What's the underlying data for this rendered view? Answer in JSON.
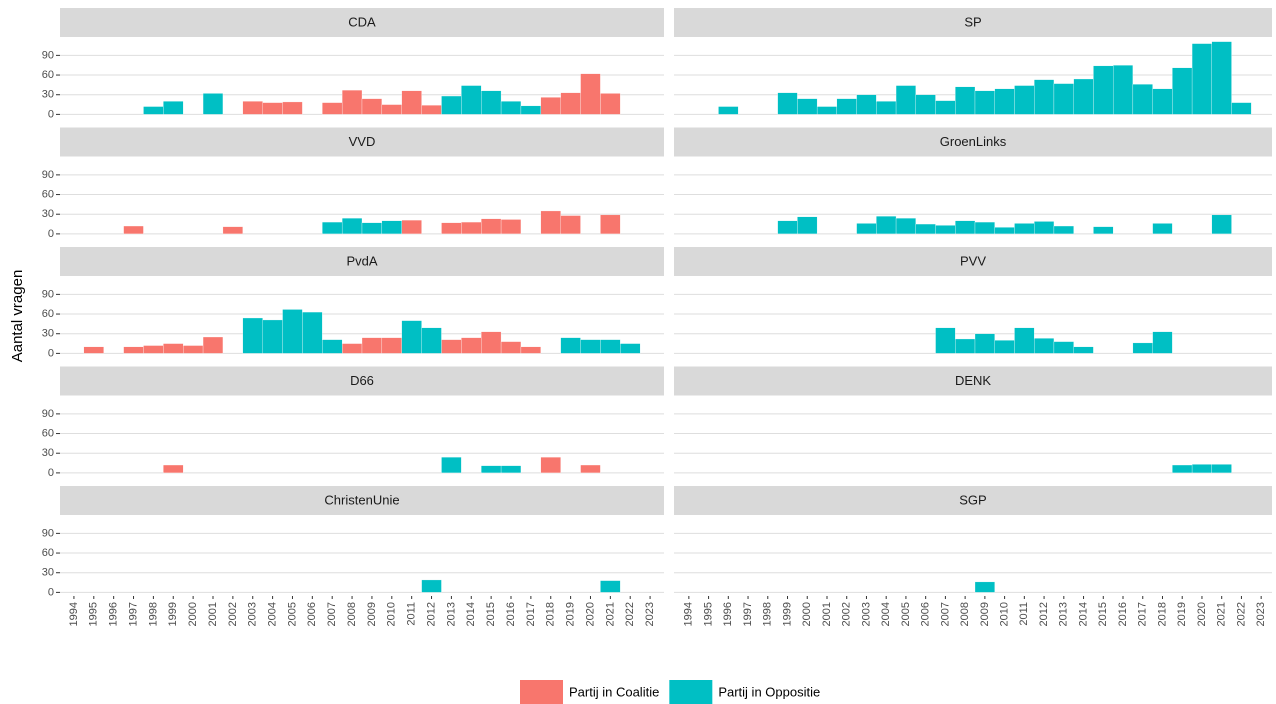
{
  "chart_data": {
    "type": "bar",
    "ylabel": "Aantal vragen",
    "categories": [
      "1994",
      "1995",
      "1996",
      "1997",
      "1998",
      "1999",
      "2000",
      "2001",
      "2002",
      "2003",
      "2004",
      "2005",
      "2006",
      "2007",
      "2008",
      "2009",
      "2010",
      "2011",
      "2012",
      "2013",
      "2014",
      "2015",
      "2016",
      "2017",
      "2018",
      "2019",
      "2020",
      "2021",
      "2022",
      "2023"
    ],
    "ylim": [
      -5.5,
      116.5
    ],
    "yticks": [
      0,
      30,
      60,
      90
    ],
    "grid": true,
    "legend": "bottom",
    "series": [
      {
        "name": "Partij in Coalitie",
        "color": "#f8766d"
      },
      {
        "name": "Partij in Oppositie",
        "color": "#00bfc4"
      }
    ],
    "facets": [
      {
        "title": "CDA",
        "series": [
          [
            null,
            null,
            null,
            null,
            null,
            null,
            null,
            null,
            null,
            20,
            18,
            19,
            null,
            18,
            37,
            24,
            15,
            36,
            14,
            null,
            null,
            null,
            null,
            null,
            26,
            33,
            62,
            32,
            null,
            null
          ],
          [
            null,
            null,
            null,
            null,
            12,
            20,
            null,
            32,
            null,
            null,
            null,
            null,
            null,
            null,
            null,
            null,
            null,
            null,
            null,
            28,
            44,
            36,
            20,
            13,
            null,
            null,
            null,
            null,
            null,
            null
          ]
        ]
      },
      {
        "title": "SP",
        "series": [
          [
            null,
            null,
            null,
            null,
            null,
            null,
            null,
            null,
            null,
            null,
            null,
            null,
            null,
            null,
            null,
            null,
            null,
            null,
            null,
            null,
            null,
            null,
            null,
            null,
            null,
            null,
            null,
            null,
            null,
            null
          ],
          [
            null,
            null,
            12,
            null,
            null,
            33,
            24,
            12,
            24,
            30,
            20,
            44,
            30,
            21,
            42,
            36,
            39,
            44,
            53,
            47,
            54,
            74,
            75,
            46,
            39,
            71,
            108,
            111,
            18,
            null
          ]
        ]
      },
      {
        "title": "VVD",
        "series": [
          [
            null,
            null,
            null,
            12,
            null,
            null,
            null,
            null,
            11,
            null,
            null,
            null,
            null,
            null,
            null,
            null,
            null,
            21,
            null,
            17,
            18,
            23,
            22,
            null,
            35,
            28,
            null,
            29,
            null,
            null
          ],
          [
            null,
            null,
            null,
            null,
            null,
            null,
            null,
            null,
            null,
            null,
            null,
            null,
            null,
            18,
            24,
            17,
            20,
            null,
            null,
            null,
            null,
            null,
            null,
            null,
            null,
            null,
            null,
            null,
            null,
            null
          ]
        ]
      },
      {
        "title": "GroenLinks",
        "series": [
          [
            null,
            null,
            null,
            null,
            null,
            null,
            null,
            null,
            null,
            null,
            null,
            null,
            null,
            null,
            null,
            null,
            null,
            null,
            null,
            null,
            null,
            null,
            null,
            null,
            null,
            null,
            null,
            null,
            null,
            null
          ],
          [
            null,
            null,
            null,
            null,
            null,
            20,
            26,
            null,
            null,
            16,
            27,
            24,
            15,
            13,
            20,
            18,
            10,
            16,
            19,
            12,
            null,
            11,
            null,
            null,
            16,
            null,
            null,
            29,
            null,
            null
          ]
        ]
      },
      {
        "title": "PvdA",
        "series": [
          [
            null,
            10,
            null,
            10,
            12,
            15,
            12,
            25,
            null,
            null,
            null,
            null,
            null,
            null,
            15,
            24,
            24,
            null,
            null,
            21,
            24,
            33,
            18,
            10,
            null,
            null,
            null,
            null,
            null,
            null
          ],
          [
            null,
            null,
            null,
            null,
            null,
            null,
            null,
            null,
            null,
            54,
            51,
            67,
            63,
            21,
            null,
            null,
            null,
            50,
            39,
            null,
            null,
            null,
            null,
            null,
            null,
            24,
            21,
            21,
            15,
            null
          ]
        ]
      },
      {
        "title": "PVV",
        "series": [
          [
            null,
            null,
            null,
            null,
            null,
            null,
            null,
            null,
            null,
            null,
            null,
            null,
            null,
            null,
            null,
            null,
            null,
            null,
            null,
            null,
            null,
            null,
            null,
            null,
            null,
            null,
            null,
            null,
            null,
            null
          ],
          [
            null,
            null,
            null,
            null,
            null,
            null,
            null,
            null,
            null,
            null,
            null,
            null,
            null,
            39,
            22,
            30,
            20,
            39,
            23,
            18,
            10,
            null,
            null,
            16,
            33,
            null,
            null,
            null,
            null,
            null
          ]
        ]
      },
      {
        "title": "D66",
        "series": [
          [
            null,
            null,
            null,
            null,
            null,
            12,
            null,
            null,
            null,
            null,
            null,
            null,
            null,
            null,
            null,
            null,
            null,
            null,
            null,
            null,
            null,
            null,
            null,
            null,
            24,
            null,
            12,
            null,
            null,
            null
          ],
          [
            null,
            null,
            null,
            null,
            null,
            null,
            null,
            null,
            null,
            null,
            null,
            null,
            null,
            null,
            null,
            null,
            null,
            null,
            null,
            24,
            null,
            11,
            11,
            null,
            null,
            null,
            null,
            null,
            null,
            null
          ]
        ]
      },
      {
        "title": "DENK",
        "series": [
          [
            null,
            null,
            null,
            null,
            null,
            null,
            null,
            null,
            null,
            null,
            null,
            null,
            null,
            null,
            null,
            null,
            null,
            null,
            null,
            null,
            null,
            null,
            null,
            null,
            null,
            null,
            null,
            null,
            null,
            null
          ],
          [
            null,
            null,
            null,
            null,
            null,
            null,
            null,
            null,
            null,
            null,
            null,
            null,
            null,
            null,
            null,
            null,
            null,
            null,
            null,
            null,
            null,
            null,
            null,
            null,
            null,
            12,
            13,
            13,
            null,
            null
          ]
        ]
      },
      {
        "title": "ChristenUnie",
        "series": [
          [
            null,
            null,
            null,
            null,
            null,
            null,
            null,
            null,
            null,
            null,
            null,
            null,
            null,
            null,
            null,
            null,
            null,
            null,
            null,
            null,
            null,
            null,
            null,
            null,
            null,
            null,
            null,
            null,
            null,
            null
          ],
          [
            null,
            null,
            null,
            null,
            null,
            null,
            null,
            null,
            null,
            null,
            null,
            null,
            null,
            null,
            null,
            null,
            null,
            null,
            19,
            null,
            null,
            null,
            null,
            null,
            null,
            null,
            null,
            18,
            null,
            null
          ]
        ]
      },
      {
        "title": "SGP",
        "series": [
          [
            null,
            null,
            null,
            null,
            null,
            null,
            null,
            null,
            null,
            null,
            null,
            null,
            null,
            null,
            null,
            null,
            null,
            null,
            null,
            null,
            null,
            null,
            null,
            null,
            null,
            null,
            null,
            null,
            null,
            null
          ],
          [
            null,
            null,
            null,
            null,
            null,
            null,
            null,
            null,
            null,
            null,
            null,
            null,
            null,
            null,
            null,
            16,
            null,
            null,
            null,
            null,
            null,
            null,
            null,
            null,
            null,
            null,
            null,
            null,
            null,
            null
          ]
        ]
      }
    ]
  }
}
